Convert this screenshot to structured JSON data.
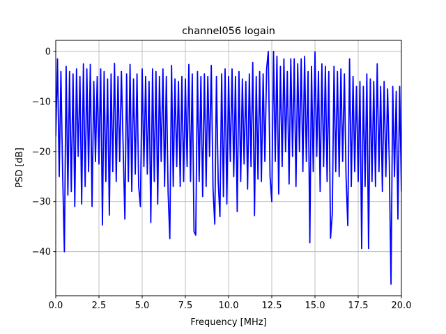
{
  "chart_data": {
    "type": "line",
    "title": "channel056 logain",
    "xlabel": "Frequency [MHz]",
    "ylabel": "PSD [dB]",
    "xlim": [
      0,
      20
    ],
    "ylim": [
      -48.8,
      2.2
    ],
    "xticks": [
      "0.0",
      "2.5",
      "5.0",
      "7.5",
      "10.0",
      "12.5",
      "15.0",
      "17.5",
      "20.0"
    ],
    "xtick_values": [
      0,
      2.5,
      5,
      7.5,
      10,
      12.5,
      15,
      17.5,
      20
    ],
    "yticks": [
      "0",
      "−10",
      "−20",
      "−30",
      "−40"
    ],
    "ytick_values": [
      0,
      -10,
      -20,
      -30,
      -40
    ],
    "grid": true,
    "line_color": "#0000ff",
    "series": [
      {
        "x": [
          0.0,
          0.1,
          0.2,
          0.3,
          0.4,
          0.5,
          0.6,
          0.7,
          0.8,
          0.9,
          1.0,
          1.1,
          1.2,
          1.3,
          1.4,
          1.5,
          1.6,
          1.7,
          1.8,
          1.9,
          2.0,
          2.1,
          2.2,
          2.3,
          2.4,
          2.5,
          2.6,
          2.7,
          2.8,
          2.9,
          3.0,
          3.1,
          3.2,
          3.3,
          3.4,
          3.5,
          3.6,
          3.7,
          3.8,
          3.9,
          4.0,
          4.1,
          4.2,
          4.3,
          4.4,
          4.5,
          4.6,
          4.7,
          4.8,
          4.9,
          5.0,
          5.1,
          5.2,
          5.3,
          5.4,
          5.5,
          5.6,
          5.7,
          5.8,
          5.9,
          6.0,
          6.1,
          6.2,
          6.3,
          6.4,
          6.5,
          6.6,
          6.7,
          6.8,
          6.9,
          7.0,
          7.1,
          7.2,
          7.3,
          7.4,
          7.5,
          7.6,
          7.7,
          7.8,
          7.9,
          8.0,
          8.1,
          8.2,
          8.3,
          8.4,
          8.5,
          8.6,
          8.7,
          8.8,
          8.9,
          9.0,
          9.1,
          9.2,
          9.3,
          9.4,
          9.5,
          9.6,
          9.7,
          9.8,
          9.9,
          10.0,
          10.1,
          10.2,
          10.3,
          10.4,
          10.5,
          10.6,
          10.7,
          10.8,
          10.9,
          11.0,
          11.1,
          11.2,
          11.3,
          11.4,
          11.5,
          11.6,
          11.7,
          11.8,
          11.9,
          12.0,
          12.1,
          12.2,
          12.3,
          12.4,
          12.5,
          12.6,
          12.7,
          12.8,
          12.9,
          13.0,
          13.1,
          13.2,
          13.3,
          13.4,
          13.5,
          13.6,
          13.7,
          13.8,
          13.9,
          14.0,
          14.1,
          14.2,
          14.3,
          14.4,
          14.5,
          14.6,
          14.7,
          14.8,
          14.9,
          15.0,
          15.1,
          15.2,
          15.3,
          15.4,
          15.5,
          15.6,
          15.7,
          15.8,
          15.9,
          16.0,
          16.1,
          16.2,
          16.3,
          16.4,
          16.5,
          16.6,
          16.7,
          16.8,
          16.9,
          17.0,
          17.1,
          17.2,
          17.3,
          17.4,
          17.5,
          17.6,
          17.7,
          17.8,
          17.9,
          18.0,
          18.1,
          18.2,
          18.3,
          18.4,
          18.5,
          18.6,
          18.7,
          18.8,
          18.9,
          19.0,
          19.1,
          19.2,
          19.3,
          19.4,
          19.5,
          19.6,
          19.7,
          19.8,
          19.9,
          20.0
        ],
        "y": [
          -17,
          -1.5,
          -25,
          -4,
          -24.5,
          -40,
          -3,
          -28.7,
          -4,
          -28,
          -4.5,
          -31,
          -3.5,
          -21,
          -5,
          -30.5,
          -2.5,
          -27,
          -3.5,
          -24,
          -2.6,
          -31,
          -6,
          -22,
          -5,
          -22.5,
          -3.5,
          -34.7,
          -4,
          -26,
          -5.5,
          -32.7,
          -4.5,
          -24,
          -2.4,
          -26,
          -5,
          -22,
          -4,
          -19,
          -33.5,
          -4.5,
          -26,
          -2.6,
          -28,
          -5.5,
          -24.5,
          -4.5,
          -27,
          -31,
          -3.5,
          -23,
          -5,
          -24.5,
          -6,
          -34.2,
          -3.5,
          -26,
          -4,
          -30.5,
          -5,
          -22,
          -3.5,
          -27,
          -5,
          -28,
          -37.4,
          -2.8,
          -27,
          -5.5,
          -23,
          -6,
          -27,
          -5,
          -26,
          -5.5,
          -23,
          -2.6,
          -26,
          -4.5,
          -36,
          -36.7,
          -4,
          -26,
          -5,
          -29,
          -4.5,
          -27,
          -5,
          -21,
          -2.8,
          -27.5,
          -34.5,
          -5,
          -26,
          -33,
          -4.5,
          -29,
          -3.5,
          -30.5,
          -5,
          -22,
          -3.5,
          -25,
          -5,
          -32,
          -4,
          -26,
          -5.5,
          -22.5,
          -6,
          -27.5,
          -4.5,
          -23,
          -2.2,
          -32.8,
          -5,
          -25.5,
          -4,
          -26,
          -4.5,
          -22,
          -3.5,
          0,
          -25,
          -30,
          0,
          -22,
          -1,
          -28.5,
          -3,
          -23,
          -1.5,
          -20,
          -4,
          -26.5,
          -1.5,
          -21,
          -1.5,
          -27,
          -2.5,
          -20,
          -1.5,
          -24,
          -1,
          -22,
          -4,
          -38.2,
          -3,
          -24,
          -0.1,
          -21,
          -4,
          -28,
          -2.5,
          -23,
          -3,
          -26,
          -4,
          -37.3,
          -32.5,
          -3,
          -24,
          -4,
          -25,
          -3.5,
          -22,
          -4.5,
          -25,
          -34.8,
          -1.5,
          -27,
          -5,
          -24,
          -7,
          -26,
          -6,
          -39.4,
          -7,
          -27,
          -4.5,
          -39.4,
          -5.5,
          -26,
          -6,
          -27,
          -2.5,
          -24,
          -7,
          -28,
          -6,
          -25,
          -7.5,
          -22,
          -46.5,
          -7,
          -25,
          -8,
          -33.5,
          -7,
          -28
        ]
      }
    ]
  }
}
